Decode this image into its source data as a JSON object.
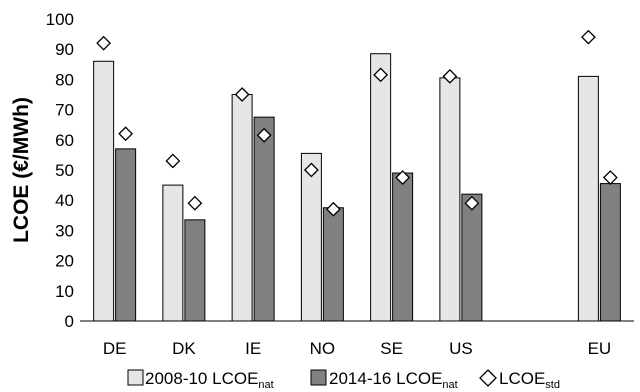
{
  "chart_data": {
    "type": "bar",
    "categories": [
      "DE",
      "DK",
      "IE",
      "NO",
      "SE",
      "US",
      "",
      "EU"
    ],
    "series": [
      {
        "name": "2008-10 LCOE",
        "name_sub": "nat",
        "kind": "bar",
        "color": "#e6e6e6",
        "values": [
          86,
          45,
          75,
          55.5,
          88.5,
          80.5,
          null,
          81
        ]
      },
      {
        "name": "2014-16 LCOE",
        "name_sub": "nat",
        "kind": "bar",
        "color": "#808080",
        "values": [
          57,
          33.5,
          67.5,
          37.5,
          49,
          42,
          null,
          45.5
        ]
      },
      {
        "name": "LCOE",
        "name_sub": "std",
        "kind": "marker",
        "marker": "diamond",
        "values_2008_10": [
          92,
          53,
          75,
          50,
          81.5,
          81,
          null,
          94
        ],
        "values_2014_16": [
          62,
          39,
          61.5,
          37,
          47.5,
          39,
          null,
          47.5
        ]
      }
    ],
    "ylabel": "LCOE (€/MWh)",
    "yticks": [
      0,
      10,
      20,
      30,
      40,
      50,
      60,
      70,
      80,
      90,
      100
    ],
    "ylim": [
      0,
      100
    ],
    "grid": false,
    "legend_position": "bottom"
  }
}
